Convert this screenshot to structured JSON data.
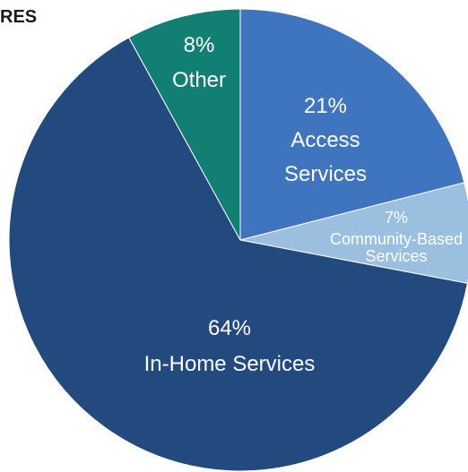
{
  "chart_data": {
    "type": "pie",
    "title": "RES",
    "slices": [
      {
        "label_pct": "21%",
        "label_lines": [
          "Access",
          "Services"
        ],
        "value": 21,
        "color": "#3f74be"
      },
      {
        "label_pct": "7%",
        "label_lines": [
          "Community-Based",
          "Services"
        ],
        "value": 7,
        "color": "#9bc0df"
      },
      {
        "label_pct": "64%",
        "label_lines": [
          "In-Home Services"
        ],
        "value": 64,
        "color": "#224a7e"
      },
      {
        "label_pct": "8%",
        "label_lines": [
          "Other"
        ],
        "value": 8,
        "color": "#127f74"
      }
    ]
  }
}
